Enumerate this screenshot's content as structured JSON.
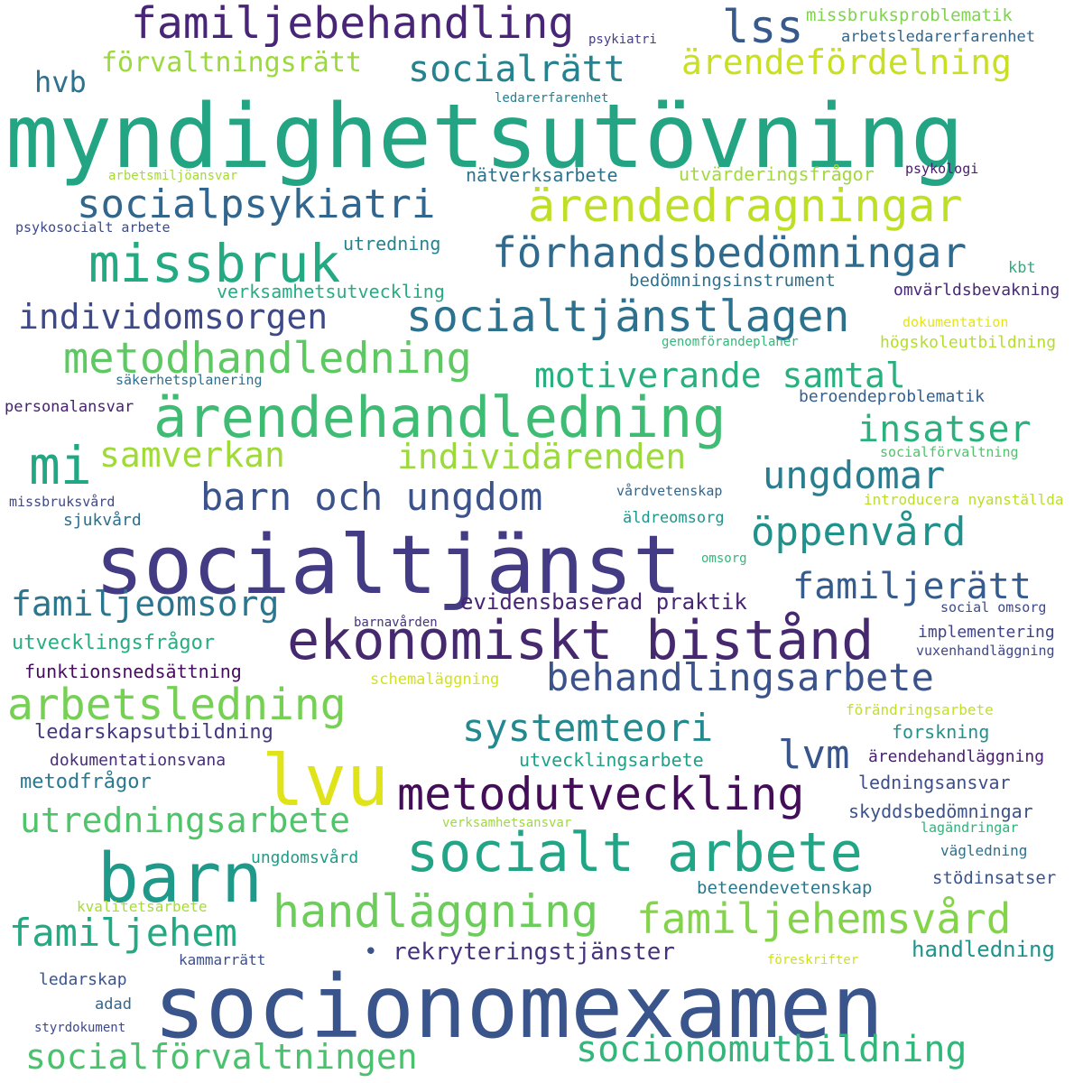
{
  "words": [
    {
      "text": "myndighetsutövning",
      "color": "#23a584"
    },
    {
      "text": "socionomexamen",
      "color": "#3a548c"
    },
    {
      "text": "socialtjänst",
      "color": "#433b84"
    },
    {
      "text": "ekonomiskt bistånd",
      "color": "#46286f"
    },
    {
      "text": "ärendehandledning",
      "color": "#3fbc73"
    },
    {
      "text": "socialt arbete",
      "color": "#21a586"
    },
    {
      "text": "barn",
      "color": "#1f9a8a"
    },
    {
      "text": "lvu",
      "color": "#dfe318"
    },
    {
      "text": "socialtjänstlagen",
      "color": "#2c718e"
    },
    {
      "text": "metodutveckling",
      "color": "#440d58"
    },
    {
      "text": "ärendedragningar",
      "color": "#bddf26"
    },
    {
      "text": "missbruk",
      "color": "#24aa83"
    },
    {
      "text": "förhandsbedömningar",
      "color": "#2f6b8e"
    },
    {
      "text": "familjebehandling",
      "color": "#482576"
    },
    {
      "text": "socialpsykiatri",
      "color": "#31668e"
    },
    {
      "text": "metodhandledning",
      "color": "#5ec962"
    },
    {
      "text": "arbetsledning",
      "color": "#75d054"
    },
    {
      "text": "behandlingsarbete",
      "color": "#3b528b"
    },
    {
      "text": "handläggning",
      "color": "#6ccd5a"
    },
    {
      "text": "familjehemsvård",
      "color": "#84d44b"
    },
    {
      "text": "socialrätt",
      "color": "#26828e"
    },
    {
      "text": "ärendefördelning",
      "color": "#c8e020"
    },
    {
      "text": "barn och ungdom",
      "color": "#3b528b"
    },
    {
      "text": "motiverande samtal",
      "color": "#2ab07f"
    },
    {
      "text": "individomsorgen",
      "color": "#3e4989"
    },
    {
      "text": "mi",
      "color": "#22a785"
    },
    {
      "text": "insatser",
      "color": "#2cb17e"
    },
    {
      "text": "ungdomar",
      "color": "#287d8e"
    },
    {
      "text": "öppenvård",
      "color": "#21918c"
    },
    {
      "text": "familjerätt",
      "color": "#365c8d"
    },
    {
      "text": "familjeomsorg",
      "color": "#2a768e"
    },
    {
      "text": "systemteori",
      "color": "#23898e"
    },
    {
      "text": "lvm",
      "color": "#39568c"
    },
    {
      "text": "utredningsarbete",
      "color": "#50c46a"
    },
    {
      "text": "familjehem",
      "color": "#24aa83"
    },
    {
      "text": "socionomutbildning",
      "color": "#32b67a"
    },
    {
      "text": "socialförvaltningen",
      "color": "#4ac16d"
    },
    {
      "text": "individärenden",
      "color": "#9bd93c"
    },
    {
      "text": "samverkan",
      "color": "#a0da39"
    },
    {
      "text": "lss",
      "color": "#38598c"
    },
    {
      "text": "förvaltningsrätt",
      "color": "#9bd93c"
    },
    {
      "text": "hvb",
      "color": "#2c718e"
    },
    {
      "text": "rekryteringstjänster",
      "color": "#46337f"
    },
    {
      "text": "handledning",
      "color": "#20938c"
    },
    {
      "text": "evidensbaserad praktik",
      "color": "#482475"
    },
    {
      "text": "missbruksproblematik",
      "color": "#7fd34e"
    },
    {
      "text": "arbetsledarerfarenhet",
      "color": "#31678e"
    },
    {
      "text": "psykiatri",
      "color": "#433e85"
    },
    {
      "text": "ledarerfarenhet",
      "color": "#277f8e"
    },
    {
      "text": "nätverksarbete",
      "color": "#2c728e"
    },
    {
      "text": "utvärderingsfrågor",
      "color": "#a2da37"
    },
    {
      "text": "psykologi",
      "color": "#481a6c"
    },
    {
      "text": "arbetsmiljöansvar",
      "color": "#a5db36"
    },
    {
      "text": "psykosocialt arbete",
      "color": "#3e4a89"
    },
    {
      "text": "utredning",
      "color": "#25838e"
    },
    {
      "text": "verksamhetsutveckling",
      "color": "#25ac82"
    },
    {
      "text": "bedömningsinstrument",
      "color": "#2d708e"
    },
    {
      "text": "kbt",
      "color": "#29af7f"
    },
    {
      "text": "omvärldsbevakning",
      "color": "#482878"
    },
    {
      "text": "dokumentation",
      "color": "#e5e419"
    },
    {
      "text": "genomförandeplaner",
      "color": "#35b779"
    },
    {
      "text": "högskoleutbildning",
      "color": "#b5de2b"
    },
    {
      "text": "säkerhetsplanering",
      "color": "#2e6e8e"
    },
    {
      "text": "beroendeproblematik",
      "color": "#355f8d"
    },
    {
      "text": "personalansvar",
      "color": "#482173"
    },
    {
      "text": "socialförvaltning",
      "color": "#4ec36b"
    },
    {
      "text": "missbruksvård",
      "color": "#3f4889"
    },
    {
      "text": "vårdvetenskap",
      "color": "#31668e"
    },
    {
      "text": "introducera nyanställda",
      "color": "#bade28"
    },
    {
      "text": "sjukvård",
      "color": "#2d708e"
    },
    {
      "text": "äldreomsorg",
      "color": "#1f968b"
    },
    {
      "text": "omsorg",
      "color": "#35b779"
    },
    {
      "text": "social omsorg",
      "color": "#3e4989"
    },
    {
      "text": "barnavården",
      "color": "#46327e"
    },
    {
      "text": "implementering",
      "color": "#414487"
    },
    {
      "text": "vuxenhandläggning",
      "color": "#3f4788"
    },
    {
      "text": "utvecklingsfrågor",
      "color": "#26ad81"
    },
    {
      "text": "funktionsnedsättning",
      "color": "#470d60"
    },
    {
      "text": "schemaläggning",
      "color": "#d2e21b"
    },
    {
      "text": "förändringsarbete",
      "color": "#c2df23"
    },
    {
      "text": "ledarskapsutbildning",
      "color": "#443983"
    },
    {
      "text": "forskning",
      "color": "#21918c"
    },
    {
      "text": "dokumentationsvana",
      "color": "#472d7b"
    },
    {
      "text": "utvecklingsarbete",
      "color": "#1fa088"
    },
    {
      "text": "ärendehandläggning",
      "color": "#481f70"
    },
    {
      "text": "metodfrågor",
      "color": "#2a788e"
    },
    {
      "text": "ledningsansvar",
      "color": "#3d4d8a"
    },
    {
      "text": "skyddsbedömningar",
      "color": "#3b528b"
    },
    {
      "text": "verksamhetsansvar",
      "color": "#9fda3a"
    },
    {
      "text": "lagändringar",
      "color": "#2eb37c"
    },
    {
      "text": "ungdomsvård",
      "color": "#1e9c89"
    },
    {
      "text": "vägledning",
      "color": "#2d708e"
    },
    {
      "text": "stödinsatser",
      "color": "#3a548c"
    },
    {
      "text": "beteendevetenskap",
      "color": "#2a788e"
    },
    {
      "text": "kvalitetsarbete",
      "color": "#a8db34"
    },
    {
      "text": "kammarrätt",
      "color": "#3c4f8a"
    },
    {
      "text": "föreskrifter",
      "color": "#cde11d"
    },
    {
      "text": "ledarskap",
      "color": "#3a548c"
    },
    {
      "text": "adad",
      "color": "#31688e"
    },
    {
      "text": "styrdokument",
      "color": "#3e4989"
    },
    {
      "text": "•",
      "color": "#3b528b"
    }
  ]
}
